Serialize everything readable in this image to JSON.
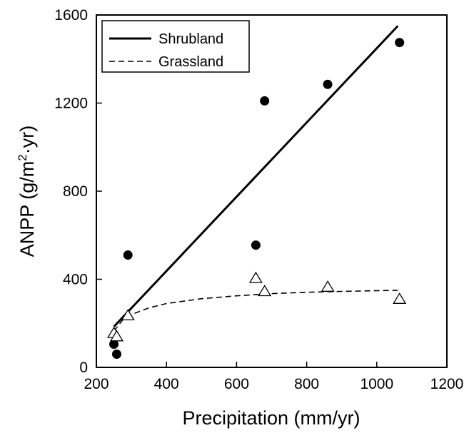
{
  "chart_data": {
    "type": "scatter",
    "xlabel": "Precipitation (mm/yr)",
    "ylabel": {
      "main": "ANPP (g/m",
      "sup": "2",
      "tail": "·yr)"
    },
    "xlim": [
      200,
      1200
    ],
    "ylim": [
      0,
      1600
    ],
    "xticks": [
      200,
      400,
      600,
      800,
      1000,
      1200
    ],
    "yticks": [
      0,
      400,
      800,
      1200,
      1600
    ],
    "legend_position": "top-left",
    "series": [
      {
        "name": "Shrubland",
        "marker": "filled-circle",
        "line": "solid",
        "color": "#000000",
        "points": [
          {
            "x": 250,
            "y": 105
          },
          {
            "x": 258,
            "y": 60
          },
          {
            "x": 290,
            "y": 510
          },
          {
            "x": 655,
            "y": 555
          },
          {
            "x": 680,
            "y": 1210
          },
          {
            "x": 860,
            "y": 1285
          },
          {
            "x": 1065,
            "y": 1475
          }
        ],
        "fit": [
          {
            "x": 250,
            "y": 185
          },
          {
            "x": 1060,
            "y": 1550
          }
        ]
      },
      {
        "name": "Grassland",
        "marker": "open-triangle",
        "line": "dashed",
        "color": "#000000",
        "points": [
          {
            "x": 250,
            "y": 155
          },
          {
            "x": 258,
            "y": 140
          },
          {
            "x": 290,
            "y": 235
          },
          {
            "x": 655,
            "y": 405
          },
          {
            "x": 680,
            "y": 345
          },
          {
            "x": 860,
            "y": 365
          },
          {
            "x": 1065,
            "y": 310
          }
        ],
        "fit": [
          {
            "x": 250,
            "y": 165
          },
          {
            "x": 275,
            "y": 215
          },
          {
            "x": 300,
            "y": 240
          },
          {
            "x": 350,
            "y": 270
          },
          {
            "x": 400,
            "y": 290
          },
          {
            "x": 500,
            "y": 312
          },
          {
            "x": 600,
            "y": 325
          },
          {
            "x": 700,
            "y": 335
          },
          {
            "x": 800,
            "y": 341
          },
          {
            "x": 900,
            "y": 345
          },
          {
            "x": 1060,
            "y": 350
          }
        ]
      }
    ]
  }
}
